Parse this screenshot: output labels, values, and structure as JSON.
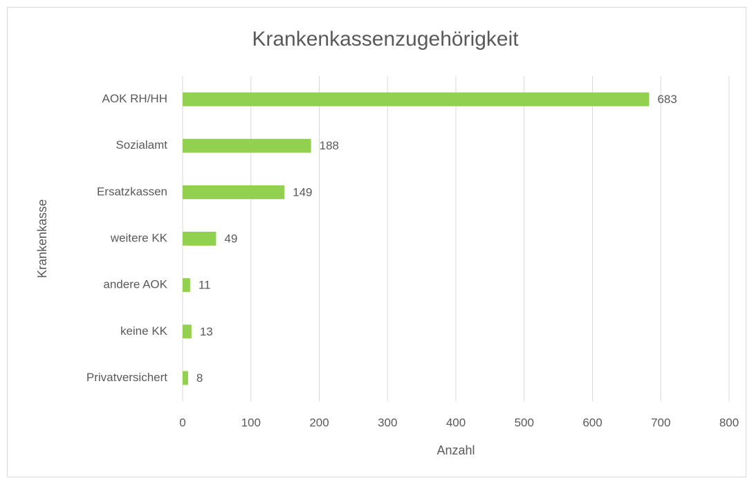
{
  "chart_data": {
    "type": "bar",
    "orientation": "horizontal",
    "title": "Krankenkassenzugehörigkeit",
    "x_label": "Anzahl",
    "y_label": "Krankenkasse",
    "categories": [
      "AOK RH/HH",
      "Sozialamt",
      "Ersatzkassen",
      "weitere KK",
      "andere AOK",
      "keine KK",
      "Privatversichert"
    ],
    "values": [
      683,
      188,
      149,
      49,
      11,
      13,
      8
    ],
    "color": "#92d050",
    "xlim": [
      0,
      800
    ],
    "xticks": [
      0,
      100,
      200,
      300,
      400,
      500,
      600,
      700,
      800
    ],
    "grid": true
  }
}
